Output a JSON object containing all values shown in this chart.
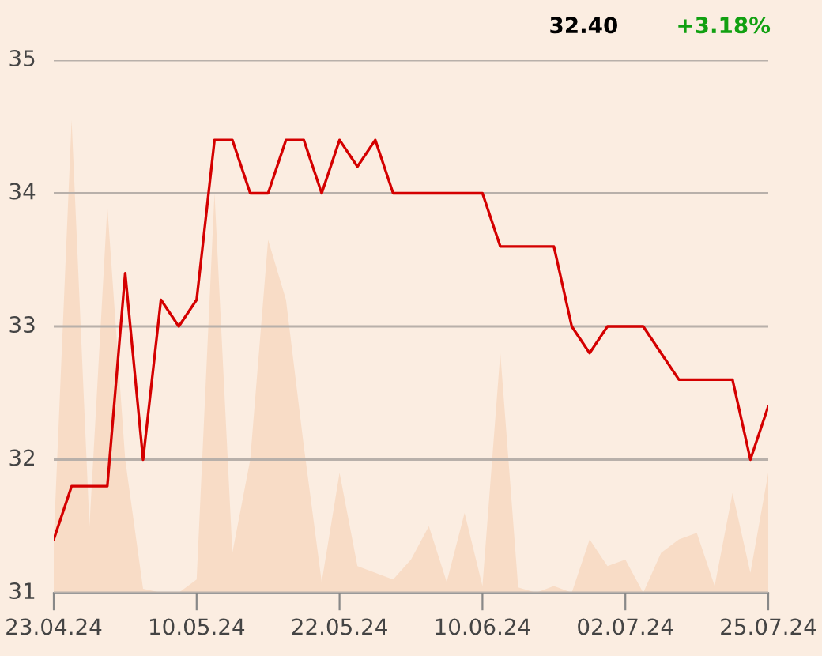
{
  "chart_data": {
    "type": "line",
    "categories": [
      "23.04.24",
      null,
      null,
      null,
      null,
      null,
      null,
      null,
      "10.05.24",
      null,
      null,
      null,
      null,
      null,
      null,
      null,
      "22.05.24",
      null,
      null,
      null,
      null,
      null,
      null,
      null,
      "10.06.24",
      null,
      null,
      null,
      null,
      null,
      null,
      null,
      "02.07.24",
      null,
      null,
      null,
      null,
      null,
      null,
      null,
      "25.07.24"
    ],
    "series": [
      {
        "type": "area",
        "color": "#f8dcc6",
        "values": [
          31.4,
          34.55,
          31.5,
          33.9,
          32.0,
          31.03,
          31.0,
          31.0,
          31.1,
          34.0,
          31.3,
          32.0,
          33.65,
          33.2,
          32.1,
          31.08,
          31.9,
          31.2,
          31.15,
          31.1,
          31.25,
          31.5,
          31.08,
          31.6,
          31.05,
          32.8,
          31.04,
          31.0,
          31.05,
          31.0,
          31.4,
          31.2,
          31.25,
          31.0,
          31.3,
          31.4,
          31.45,
          31.05,
          31.75,
          31.15,
          31.9
        ]
      },
      {
        "color": "#d40000",
        "values": [
          31.4,
          31.8,
          31.8,
          31.8,
          33.4,
          32.0,
          33.2,
          33.0,
          33.2,
          34.4,
          34.4,
          34.0,
          34.0,
          34.4,
          34.4,
          34.0,
          34.4,
          34.2,
          34.4,
          34.0,
          34.0,
          34.0,
          34.0,
          34.0,
          34.0,
          33.6,
          33.6,
          33.6,
          33.6,
          33.0,
          32.8,
          33.0,
          33.0,
          33.0,
          32.8,
          32.6,
          32.6,
          32.6,
          32.6,
          32.0,
          32.4
        ]
      }
    ],
    "ylim": [
      31,
      35
    ],
    "yticks": [
      31,
      32,
      33,
      34,
      35
    ],
    "grid": "y",
    "annotations": [
      "32.40",
      "+3.18%"
    ]
  }
}
